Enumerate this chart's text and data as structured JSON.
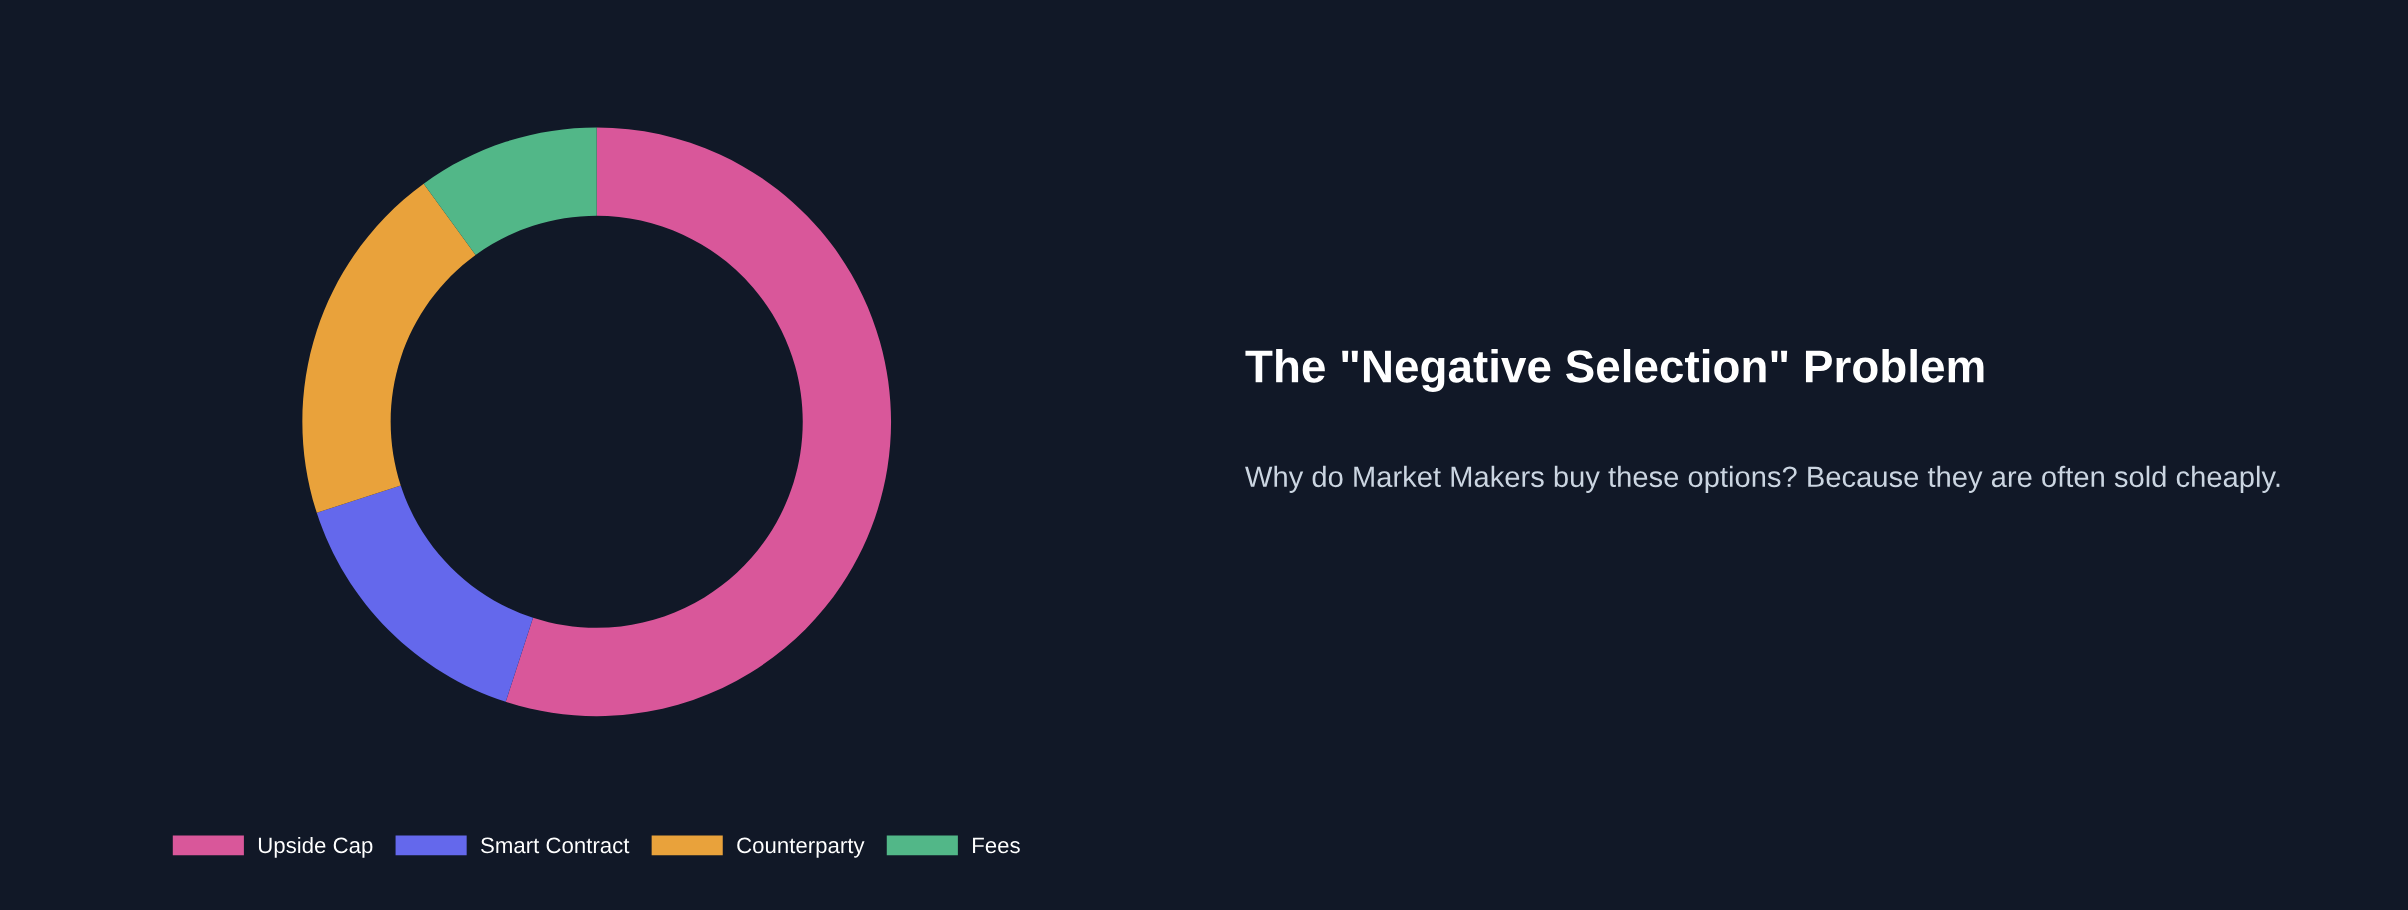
{
  "chart_data": {
    "type": "donut",
    "title": "The \"Negative Selection\" Problem",
    "subtitle": "Why do Market Makers buy these options? Because they are often sold cheaply.",
    "categories": [
      "Upside Cap",
      "Smart Contract",
      "Counterparty",
      "Fees"
    ],
    "values": [
      55,
      15,
      20,
      10
    ],
    "colors": [
      "#d9579a",
      "#6468ec",
      "#e9a23b",
      "#52b788"
    ],
    "legend": "bottom"
  }
}
